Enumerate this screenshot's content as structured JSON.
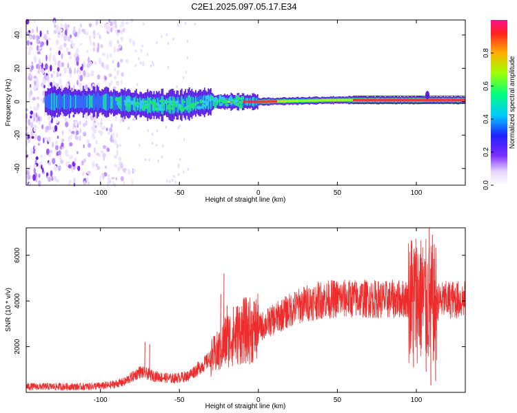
{
  "title": "C2E1.2025.097.05.17.E34",
  "chart_data": [
    {
      "type": "heatmap",
      "xlabel": "Height of straight line (km)",
      "ylabel": "Frequency (Hz)",
      "xlim": [
        -147,
        131
      ],
      "ylim": [
        -50,
        49
      ],
      "xticks": [
        -100,
        -50,
        0,
        50,
        100
      ],
      "yticks": [
        -40,
        -20,
        0,
        20,
        40
      ],
      "colorbar": {
        "label": "Normalized spectral amplitude",
        "range": [
          0,
          1
        ],
        "ticks": [
          0.0,
          0.2,
          0.4,
          0.6,
          0.8
        ]
      },
      "ridge": {
        "description_points": [
          {
            "x": -135,
            "y": 0
          },
          {
            "x": -100,
            "y": 0
          },
          {
            "x": -70,
            "y": -2
          },
          {
            "x": -50,
            "y": -2
          },
          {
            "x": -30,
            "y": 0
          },
          {
            "x": -15,
            "y": 0
          },
          {
            "x": 0,
            "y": 0
          },
          {
            "x": 50,
            "y": 1
          },
          {
            "x": 100,
            "y": 1
          },
          {
            "x": 131,
            "y": 1
          }
        ]
      },
      "noise_region_x": [
        -147,
        -85
      ]
    },
    {
      "type": "line",
      "xlabel": "Height of straight line (km)",
      "ylabel": "SNR (10 * v/v)",
      "xlim": [
        -147,
        131
      ],
      "ylim": [
        0,
        7200
      ],
      "xticks": [
        -100,
        -50,
        0,
        50,
        100
      ],
      "yticks": [
        2000,
        4000,
        6000
      ],
      "series": [
        {
          "color": "#ee2c2c",
          "envelope": [
            {
              "x": -147,
              "y": 250
            },
            {
              "x": -110,
              "y": 250
            },
            {
              "x": -95,
              "y": 300
            },
            {
              "x": -85,
              "y": 450
            },
            {
              "x": -75,
              "y": 900
            },
            {
              "x": -65,
              "y": 700
            },
            {
              "x": -55,
              "y": 600
            },
            {
              "x": -45,
              "y": 700
            },
            {
              "x": -35,
              "y": 1200
            },
            {
              "x": -25,
              "y": 1800
            },
            {
              "x": -20,
              "y": 2300
            },
            {
              "x": -15,
              "y": 2500
            },
            {
              "x": -10,
              "y": 2700
            },
            {
              "x": -5,
              "y": 2700
            },
            {
              "x": 0,
              "y": 2800
            },
            {
              "x": 10,
              "y": 3200
            },
            {
              "x": 20,
              "y": 3600
            },
            {
              "x": 30,
              "y": 3900
            },
            {
              "x": 40,
              "y": 4050
            },
            {
              "x": 50,
              "y": 4100
            },
            {
              "x": 60,
              "y": 4100
            },
            {
              "x": 70,
              "y": 4100
            },
            {
              "x": 80,
              "y": 4050
            },
            {
              "x": 90,
              "y": 4100
            },
            {
              "x": 95,
              "y": 4100
            },
            {
              "x": 100,
              "y": 4200
            },
            {
              "x": 105,
              "y": 4000
            },
            {
              "x": 110,
              "y": 3800
            },
            {
              "x": 115,
              "y": 4000
            },
            {
              "x": 120,
              "y": 4050
            },
            {
              "x": 131,
              "y": 4050
            }
          ],
          "spikes": [
            {
              "x": -72,
              "y": 2200
            },
            {
              "x": -69,
              "y": 2100
            },
            {
              "x": -22,
              "y": 5200
            },
            {
              "x": -24,
              "y": 4300
            },
            {
              "x": -20,
              "y": 3800
            },
            {
              "x": 97,
              "y": 6500
            },
            {
              "x": 98,
              "y": 1100
            },
            {
              "x": 103,
              "y": 5900
            },
            {
              "x": 106,
              "y": 900
            },
            {
              "x": 108,
              "y": 7200
            },
            {
              "x": 109,
              "y": 300
            },
            {
              "x": 110,
              "y": 6900
            },
            {
              "x": 112,
              "y": 500
            }
          ]
        }
      ]
    }
  ]
}
